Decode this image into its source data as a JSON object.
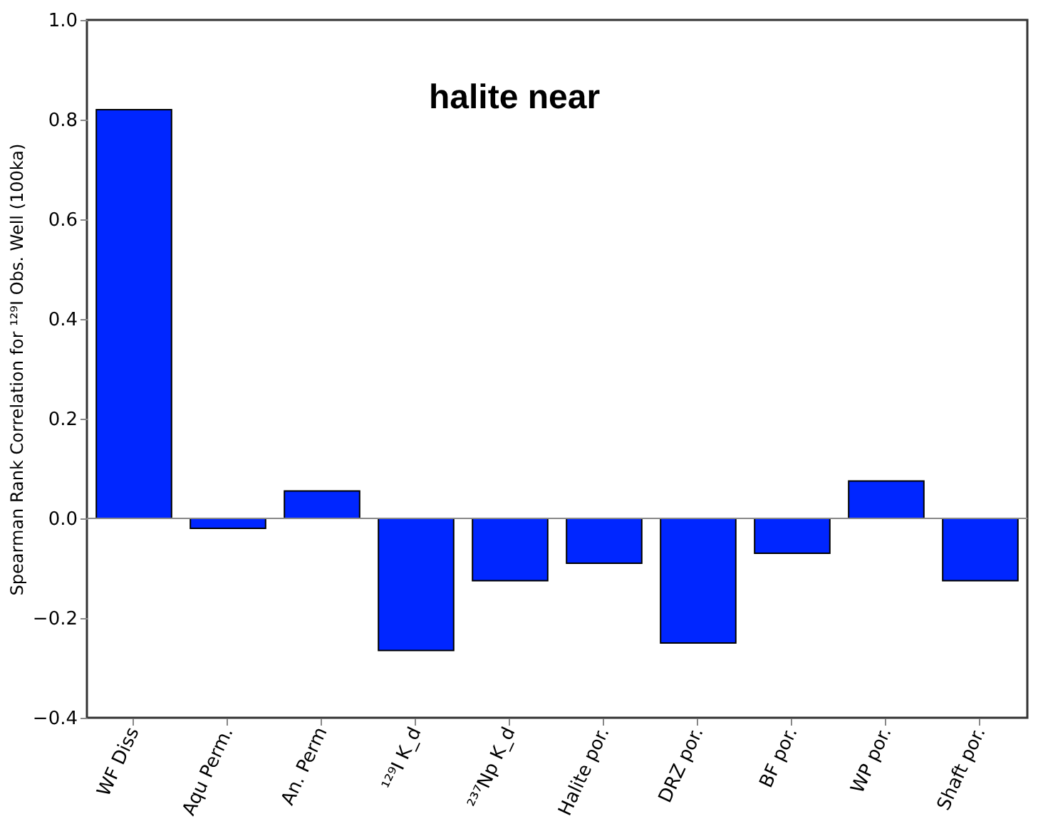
{
  "chart_data": {
    "type": "bar",
    "categories": [
      "WF Diss",
      "Aqu Perm.",
      "An. Perm",
      "¹²⁹I K_d",
      "²³⁷Np K_d",
      "Halite por.",
      "DRZ por.",
      "BF por.",
      "WP por.",
      "Shaft por."
    ],
    "values": [
      0.82,
      -0.02,
      0.055,
      -0.265,
      -0.125,
      -0.09,
      -0.25,
      -0.07,
      0.075,
      -0.125
    ],
    "color": "#0026ff",
    "ylabel": "Spearman Rank Correlation for ¹²⁹I Obs. Well (100ka)",
    "annotations": [
      "halite near"
    ],
    "ylim": [
      -0.4,
      1.0
    ],
    "yticks": [
      -0.4,
      -0.2,
      {
        "value": 0,
        "label": "0.0"
      },
      0.2,
      0.4,
      0.6,
      0.8,
      {
        "value": 1,
        "label": "1.0"
      }
    ],
    "ref_lines": [
      {
        "axis": "y",
        "value": 0,
        "color": "#888888"
      }
    ],
    "grid": false
  }
}
